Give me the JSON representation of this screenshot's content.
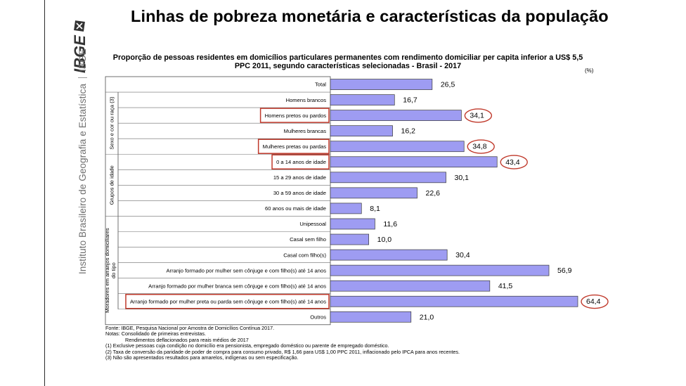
{
  "header": {
    "title": "Linhas de pobreza monetária e características da população",
    "logo_text": "IBGE",
    "institute": "Instituto Brasileiro de Geografia e Estatística",
    "institute_abbr": "IBGE"
  },
  "chart_data": {
    "type": "bar",
    "orientation": "horizontal",
    "title": "Proporção de pessoas residentes em domicílios particulares permanentes com rendimento domiciliar per capita inferior a US$ 5,5 PPC 2011, segundo características selecionadas - Brasil - 2017",
    "unit": "(%)",
    "xlim": [
      0,
      65
    ],
    "bar_color": "#9e9cf2",
    "highlight_color": "#c0392b",
    "groups": [
      {
        "label": "Sexo e cor ou raça (3)",
        "start": 1,
        "end": 4
      },
      {
        "label": "Grupos de idade",
        "start": 5,
        "end": 8
      },
      {
        "label": "Moradores em arranjos domiciliares do tipo",
        "start": 9,
        "end": 15
      }
    ],
    "categories": [
      "Total",
      "Homens brancos",
      "Homens pretos ou pardos",
      "Mulheres brancas",
      "Mulheres pretas ou pardas",
      "0 a 14 anos de idade",
      "15 a 29 anos de idade",
      "30 a 59 anos de idade",
      "60 anos ou mais de idade",
      "Unipessoal",
      "Casal sem filho",
      "Casal com filho(s)",
      "Arranjo formado por mulher sem cônjuge e com filho(s) até 14 anos",
      "Arranjo formado por mulher branca sem cônjuge e com filho(s) até 14 anos",
      "Arranjo formado por mulher preta ou parda sem cônjuge e com filho(s) até 14 anos",
      "Outros"
    ],
    "values": [
      26.5,
      16.7,
      34.1,
      16.2,
      34.8,
      43.4,
      30.1,
      22.6,
      8.1,
      11.6,
      10.0,
      30.4,
      56.9,
      41.5,
      64.4,
      21.0
    ],
    "value_labels": [
      "26,5",
      "16,7",
      "34,1",
      "16,2",
      "34,8",
      "43,4",
      "30,1",
      "22,6",
      "8,1",
      "11,6",
      "10,0",
      "30,4",
      "56,9",
      "41,5",
      "64,4",
      "21,0"
    ],
    "highlighted": [
      2,
      4,
      5,
      14
    ]
  },
  "notes": [
    "Fonte: IBGE, Pesquisa Nacional por Amostra de Domicílios Contínua 2017.",
    "Notas: Consolidado de primeiras entrevistas.",
    "Rendimentos deflacionados para reais médios de 2017",
    "(1) Exclusive pessoas cuja condição no domicílio era pensionista, empregado doméstico ou parente de empregado doméstico.",
    "(2) Taxa de conversão da paridade de poder de compra para consumo privado, R$ 1,66 para US$ 1,00 PPC 2011, inflacionado pelo IPCA para anos recentes.",
    "(3) Não são apresentados resultados para amarelos, indígenas ou sem especificação."
  ]
}
